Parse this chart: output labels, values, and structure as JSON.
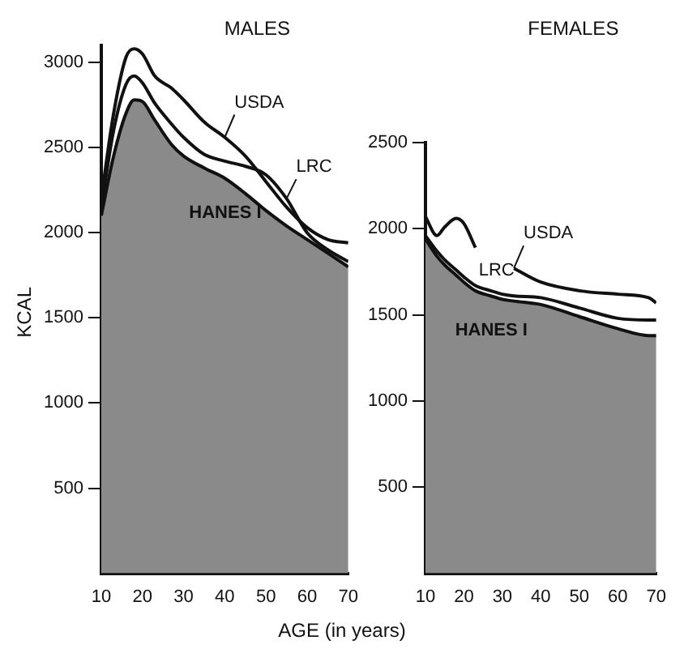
{
  "chart_data": [
    {
      "type": "line",
      "title": "MALES",
      "ylabel": "KCAL",
      "xlabel": "AGE (in years)",
      "xlim": [
        10,
        70
      ],
      "xticks": [
        10,
        20,
        30,
        40,
        50,
        60,
        70
      ],
      "ylim": [
        0,
        3100
      ],
      "yticks": [
        500,
        1000,
        1500,
        2000,
        2500,
        3000
      ],
      "grid": false,
      "legend": false,
      "marker": "none",
      "x": [
        10,
        13,
        16,
        18,
        20,
        23,
        27,
        30,
        35,
        40,
        45,
        50,
        55,
        60,
        65,
        70
      ],
      "series": [
        {
          "name": "USDA",
          "type": "line",
          "color": "#111111",
          "values": [
            2200,
            2700,
            3030,
            3080,
            3050,
            2920,
            2850,
            2780,
            2650,
            2560,
            2450,
            2300,
            2150,
            2030,
            1960,
            1940
          ]
        },
        {
          "name": "LRC",
          "type": "line",
          "color": "#111111",
          "values": [
            2150,
            2600,
            2870,
            2920,
            2880,
            2760,
            2640,
            2560,
            2460,
            2420,
            2390,
            2340,
            2200,
            2000,
            1900,
            1830
          ]
        },
        {
          "name": "HANES I",
          "type": "area",
          "color": "#8a8a8a",
          "values": [
            2100,
            2450,
            2700,
            2780,
            2770,
            2660,
            2520,
            2450,
            2380,
            2320,
            2230,
            2130,
            2040,
            1960,
            1880,
            1800
          ]
        }
      ]
    },
    {
      "type": "line",
      "title": "FEMALES",
      "xlim": [
        10,
        70
      ],
      "xticks": [
        10,
        20,
        30,
        40,
        50,
        60,
        70
      ],
      "ylim": [
        0,
        2500
      ],
      "yticks": [
        500,
        1000,
        1500,
        2000,
        2500
      ],
      "grid": false,
      "legend": false,
      "marker": "none",
      "x": [
        10,
        13,
        15,
        18,
        20,
        23,
        27,
        30,
        33,
        40,
        50,
        60,
        68,
        70
      ],
      "series": [
        {
          "name": "USDA",
          "type": "line",
          "color": "#111111",
          "values": [
            2070,
            1960,
            2010,
            2060,
            2030,
            1890,
            null,
            null,
            1770,
            1690,
            1640,
            1620,
            1600,
            1570
          ]
        },
        {
          "name": "LRC",
          "type": "line",
          "color": "#111111",
          "values": [
            1960,
            1870,
            1820,
            1760,
            1720,
            1670,
            1640,
            1620,
            1610,
            1600,
            1540,
            1480,
            1470,
            1470
          ]
        },
        {
          "name": "HANES I",
          "type": "area",
          "color": "#8a8a8a",
          "values": [
            1940,
            1840,
            1790,
            1730,
            1690,
            1640,
            1610,
            1590,
            1580,
            1560,
            1490,
            1420,
            1380,
            1380
          ]
        }
      ]
    }
  ]
}
